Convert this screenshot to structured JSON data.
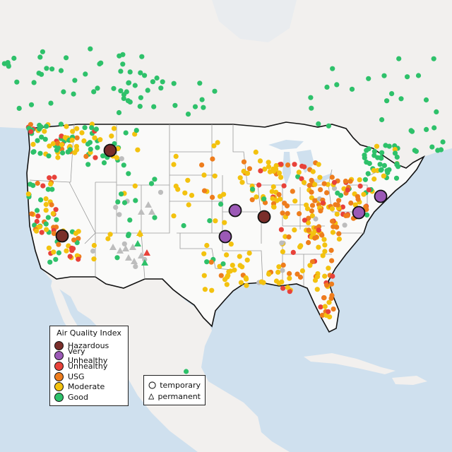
{
  "legend": {
    "title": "Air Quality Index",
    "categories": [
      {
        "label": "Hazardous",
        "color": "#7a2e2a"
      },
      {
        "label": "Very Unhealthy",
        "color": "#9b59b6"
      },
      {
        "label": "Unhealthy",
        "color": "#e8423a"
      },
      {
        "label": "USG",
        "color": "#ee7d1d"
      },
      {
        "label": "Moderate",
        "color": "#f3c20f"
      },
      {
        "label": "Good",
        "color": "#2ec16a"
      }
    ],
    "shapes": [
      {
        "label": "temporary",
        "shape": "circle"
      },
      {
        "label": "permanent",
        "shape": "triangle"
      }
    ]
  },
  "colors": {
    "ocean": "#cfe0ee",
    "land": "#f2f0ee",
    "us_land": "#fafaf9",
    "border": "#111111",
    "state_line": "#9a9a9a",
    "no_data": "#bdbdbd"
  },
  "map": {
    "region": "Contiguous United States",
    "large_markers": [
      {
        "category": "Hazardous",
        "place": "Western Montana"
      },
      {
        "category": "Hazardous",
        "place": "Southern Illinois"
      },
      {
        "category": "Hazardous",
        "place": "Central California"
      },
      {
        "category": "Very Unhealthy",
        "place": "Northeast Kansas"
      },
      {
        "category": "Very Unhealthy",
        "place": "Southern Kansas"
      },
      {
        "category": "Very Unhealthy",
        "place": "Maryland"
      },
      {
        "category": "Very Unhealthy",
        "place": "New Jersey"
      }
    ]
  }
}
